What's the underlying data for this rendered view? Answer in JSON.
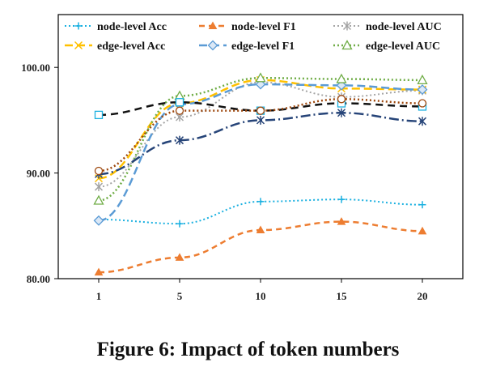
{
  "caption": "Figure 6: Impact of token numbers",
  "chart_data": {
    "type": "line",
    "title": "",
    "xlabel": "",
    "ylabel": "",
    "categories": [
      "1",
      "5",
      "10",
      "15",
      "20"
    ],
    "ylim": [
      80,
      105
    ],
    "yticks": [
      "80.00",
      "90.00",
      "100.00"
    ],
    "grid": false,
    "legend_position": "top",
    "series": [
      {
        "name": "node-level Acc",
        "values": [
          85.6,
          85.2,
          87.3,
          87.5,
          87.0
        ],
        "color": "#1ab0e0",
        "dash": "2,3",
        "marker": "plus",
        "width": 2
      },
      {
        "name": "node-level F1",
        "values": [
          80.6,
          82.0,
          84.6,
          85.4,
          84.5
        ],
        "color": "#ed7d31",
        "dash": "7,5",
        "marker": "triangle",
        "width": 2.5
      },
      {
        "name": "node-level AUC",
        "values": [
          88.7,
          95.3,
          98.6,
          97.2,
          97.8
        ],
        "color": "#a5a5a5",
        "dash": "2,3",
        "marker": "star",
        "width": 2
      },
      {
        "name": "edge-level Acc",
        "values": [
          89.5,
          96.6,
          98.8,
          98.0,
          97.9
        ],
        "color": "#ffc000",
        "dash": "10,5",
        "marker": "x",
        "width": 2.5
      },
      {
        "name": "edge-level F1",
        "values": [
          85.5,
          96.5,
          98.4,
          98.3,
          97.9
        ],
        "color": "#5b9bd5",
        "dash": "10,5",
        "marker": "diamond",
        "width": 2.5
      },
      {
        "name": "edge-level AUC",
        "values": [
          87.4,
          97.3,
          99.0,
          98.9,
          98.8
        ],
        "color": "#70ad47",
        "dash": "2,3",
        "marker": "triangle-open",
        "width": 2.5
      },
      {
        "name": "",
        "values": [
          95.5,
          96.7,
          95.9,
          96.6,
          96.3
        ],
        "color": "#111111",
        "dash": "9,6",
        "marker": "square",
        "width": 2.5
      },
      {
        "name": "",
        "values": [
          89.9,
          93.1,
          95.0,
          95.7,
          94.9
        ],
        "color": "#264478",
        "dash": "12,4,2,4",
        "marker": "star",
        "width": 2.5
      },
      {
        "name": "",
        "values": [
          90.2,
          95.9,
          95.9,
          97.0,
          96.6
        ],
        "color": "#9e480e",
        "dash": "2,3",
        "marker": "circle",
        "width": 2.5
      }
    ]
  }
}
